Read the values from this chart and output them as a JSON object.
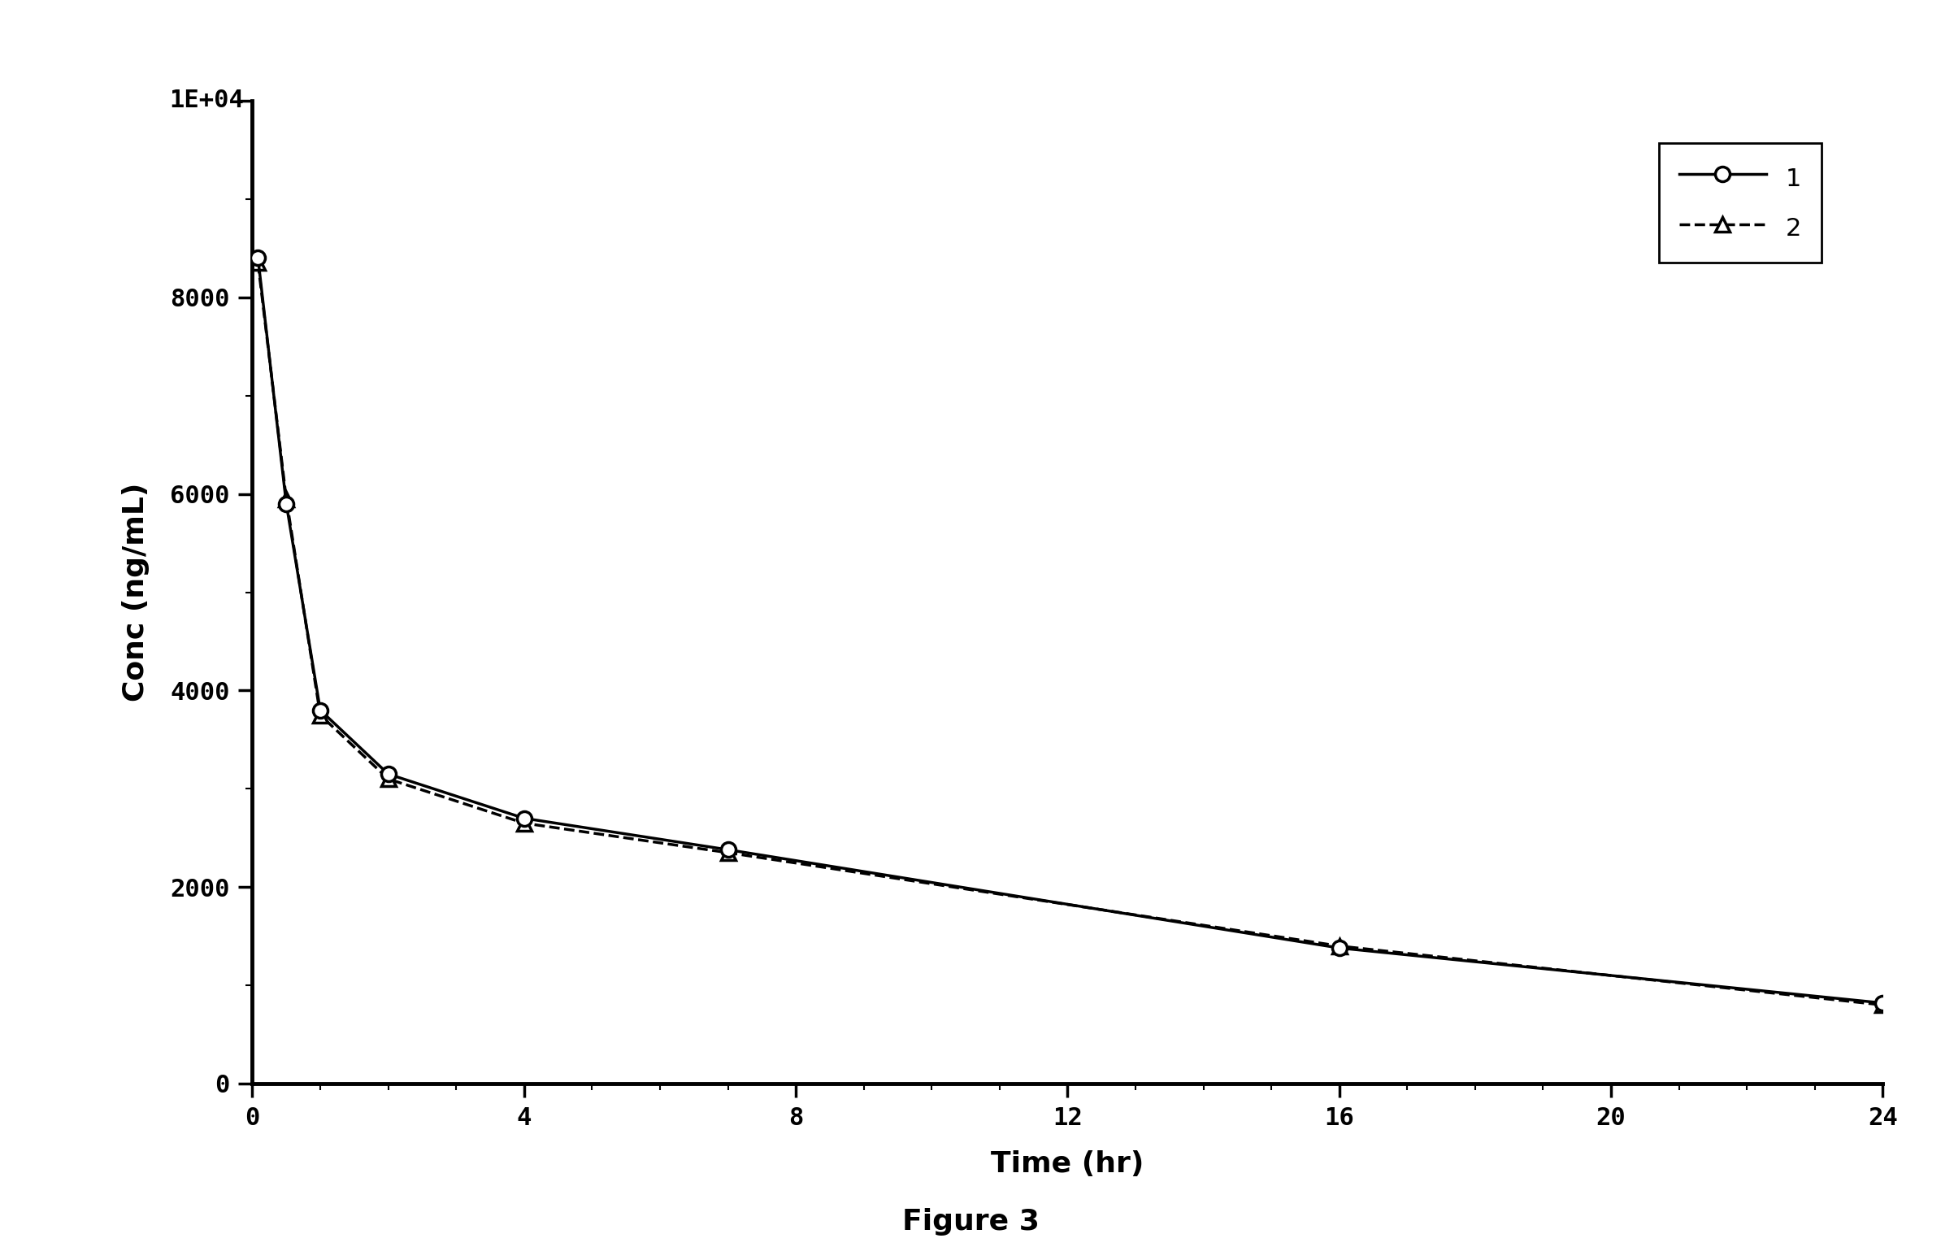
{
  "series1": {
    "x": [
      0.083,
      0.5,
      1,
      2,
      4,
      7,
      16,
      24
    ],
    "y": [
      8400,
      5900,
      3800,
      3150,
      2700,
      2380,
      1380,
      820
    ],
    "label": "1",
    "linestyle": "-",
    "marker": "o",
    "color": "#000000",
    "linewidth": 2.5,
    "markersize": 13
  },
  "series2": {
    "x": [
      0.083,
      0.5,
      1,
      2,
      4,
      7,
      16,
      24
    ],
    "y": [
      8350,
      5950,
      3750,
      3100,
      2650,
      2350,
      1400,
      800
    ],
    "label": "2",
    "linestyle": "--",
    "marker": "^",
    "color": "#000000",
    "linewidth": 2.5,
    "markersize": 13
  },
  "xlabel": "Time (hr)",
  "ylabel": "Conc (ng/mL)",
  "figure_label": "Figure 3",
  "xlim": [
    0,
    24
  ],
  "ylim": [
    0,
    10000
  ],
  "yticks": [
    0,
    2000,
    4000,
    6000,
    8000,
    10000
  ],
  "ytick_labels": [
    "0",
    "2000",
    "4000",
    "6000",
    "8000",
    "1E+04"
  ],
  "xticks": [
    0,
    4,
    8,
    12,
    16,
    20,
    24
  ],
  "xtick_labels": [
    "0",
    "4",
    "8",
    "12",
    "16",
    "20",
    "24"
  ],
  "legend_loc": "upper right",
  "background_color": "#ffffff",
  "font_size": 22,
  "label_font_size": 26,
  "figure_label_font_size": 26,
  "spine_linewidth": 3.5
}
